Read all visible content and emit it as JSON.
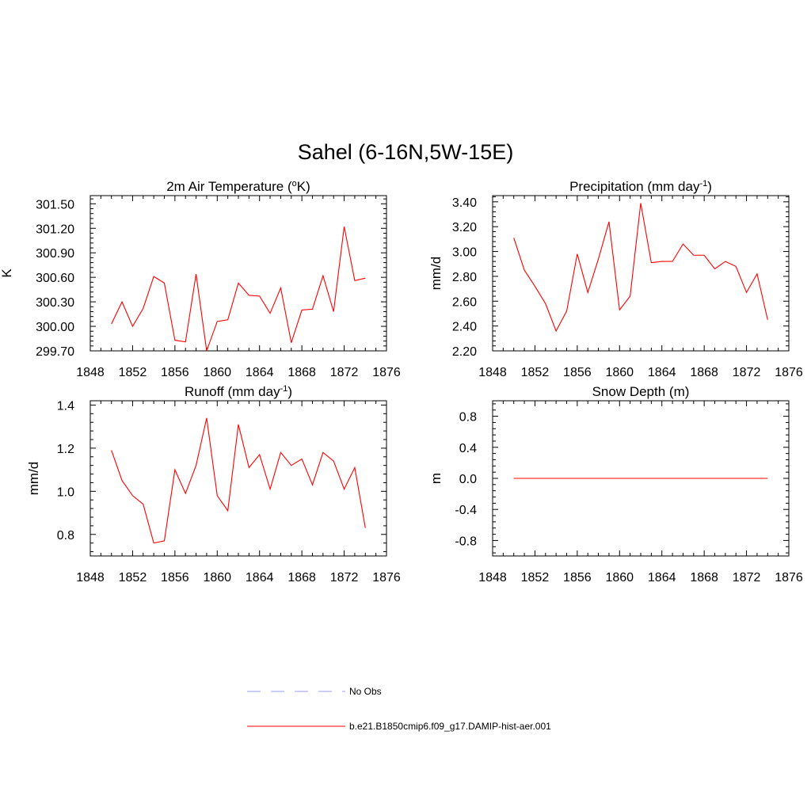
{
  "title": "Sahel (6-16N,5W-15E)",
  "colors": {
    "model": "#ff0000",
    "obs": "#9999ff",
    "axis": "#000000"
  },
  "legend": {
    "items": [
      {
        "label": "No Obs",
        "style": "dashed",
        "color": "#9999ff"
      },
      {
        "label": "b.e21.B1850cmip6.f09_g17.DAMIP-hist-aer.001",
        "style": "solid",
        "color": "#ff0000"
      }
    ]
  },
  "chart_data": [
    {
      "type": "line",
      "title": "2m Air Temperature (",
      "title_sup": "o",
      "title_after": "K)",
      "ylabel": "K",
      "xlim": [
        1848,
        1876
      ],
      "x_ticks": [
        "1848",
        "1852",
        "1856",
        "1860",
        "1864",
        "1868",
        "1872",
        "1876"
      ],
      "ylim": [
        299.7,
        301.6
      ],
      "y_ticks": [
        "299.70",
        "300.00",
        "300.30",
        "300.60",
        "300.90",
        "301.20",
        "301.50"
      ],
      "x": [
        1850,
        1851,
        1852,
        1853,
        1854,
        1855,
        1856,
        1857,
        1858,
        1859,
        1860,
        1861,
        1862,
        1863,
        1864,
        1865,
        1866,
        1867,
        1868,
        1869,
        1870,
        1871,
        1872,
        1873,
        1874
      ],
      "series": [
        {
          "values": [
            300.03,
            300.3,
            300.0,
            300.22,
            300.61,
            300.53,
            299.83,
            299.81,
            300.64,
            299.7,
            300.06,
            300.08,
            300.53,
            300.38,
            300.37,
            300.16,
            300.47,
            299.8,
            300.2,
            300.21,
            300.62,
            300.18,
            301.22,
            300.56,
            300.59
          ]
        }
      ]
    },
    {
      "type": "line",
      "title": "Precipitation (mm day",
      "title_sup": "-1",
      "title_after": ")",
      "ylabel": "mm/d",
      "xlim": [
        1848,
        1876
      ],
      "x_ticks": [
        "1848",
        "1852",
        "1856",
        "1860",
        "1864",
        "1868",
        "1872",
        "1876"
      ],
      "ylim": [
        2.2,
        3.45
      ],
      "y_ticks": [
        "2.20",
        "2.40",
        "2.60",
        "2.80",
        "3.00",
        "3.20",
        "3.40"
      ],
      "x": [
        1850,
        1851,
        1852,
        1853,
        1854,
        1855,
        1856,
        1857,
        1858,
        1859,
        1860,
        1861,
        1862,
        1863,
        1864,
        1865,
        1866,
        1867,
        1868,
        1869,
        1870,
        1871,
        1872,
        1873,
        1874
      ],
      "series": [
        {
          "values": [
            3.11,
            2.85,
            2.72,
            2.58,
            2.36,
            2.52,
            2.98,
            2.67,
            2.94,
            3.24,
            2.53,
            2.64,
            3.39,
            2.91,
            2.92,
            2.92,
            3.06,
            2.97,
            2.97,
            2.86,
            2.92,
            2.88,
            2.67,
            2.82,
            2.45
          ]
        }
      ]
    },
    {
      "type": "line",
      "title": "Runoff (mm day",
      "title_sup": "-1",
      "title_after": ")",
      "ylabel": "mm/d",
      "xlim": [
        1848,
        1876
      ],
      "x_ticks": [
        "1848",
        "1852",
        "1856",
        "1860",
        "1864",
        "1868",
        "1872",
        "1876"
      ],
      "ylim": [
        0.7,
        1.42
      ],
      "y_ticks": [
        "0.8",
        "1.0",
        "1.2",
        "1.4"
      ],
      "x": [
        1850,
        1851,
        1852,
        1853,
        1854,
        1855,
        1856,
        1857,
        1858,
        1859,
        1860,
        1861,
        1862,
        1863,
        1864,
        1865,
        1866,
        1867,
        1868,
        1869,
        1870,
        1871,
        1872,
        1873,
        1874
      ],
      "series": [
        {
          "values": [
            1.19,
            1.05,
            0.98,
            0.94,
            0.76,
            0.77,
            1.1,
            0.99,
            1.12,
            1.34,
            0.98,
            0.91,
            1.31,
            1.11,
            1.17,
            1.01,
            1.18,
            1.12,
            1.15,
            1.03,
            1.18,
            1.14,
            1.01,
            1.11,
            0.83
          ]
        }
      ]
    },
    {
      "type": "line",
      "title": "Snow Depth (m)",
      "title_sup": "",
      "title_after": "",
      "ylabel": "m",
      "xlim": [
        1848,
        1876
      ],
      "x_ticks": [
        "1848",
        "1852",
        "1856",
        "1860",
        "1864",
        "1868",
        "1872",
        "1876"
      ],
      "ylim": [
        -1.0,
        1.0
      ],
      "y_ticks": [
        "-0.8",
        "-0.4",
        "0.0",
        "0.4",
        "0.8"
      ],
      "x": [
        1850,
        1874
      ],
      "series": [
        {
          "values": [
            0.0,
            0.0
          ]
        }
      ]
    }
  ]
}
